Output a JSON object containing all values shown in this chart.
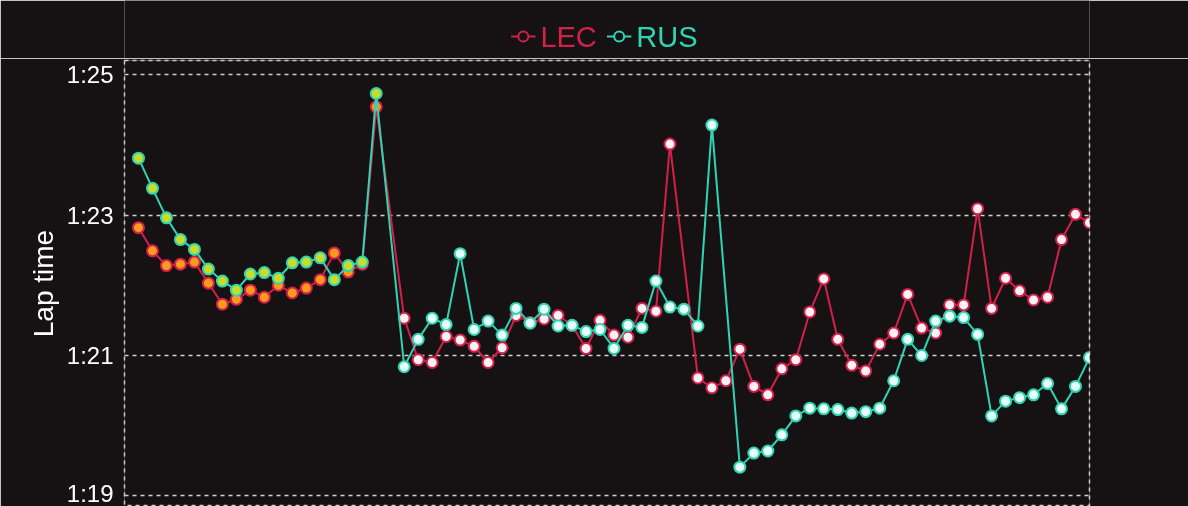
{
  "chart_data": {
    "type": "line",
    "ylabel": "Lap time",
    "categories": [
      null,
      null,
      null,
      null,
      null,
      null,
      null,
      null,
      null,
      null,
      null,
      null,
      null,
      null,
      null,
      null,
      null,
      null,
      null,
      null,
      null,
      null,
      null,
      null,
      null,
      null,
      null,
      null,
      null,
      null,
      null,
      null,
      null,
      null,
      null,
      null,
      null,
      null,
      null,
      null,
      null,
      null,
      null,
      null,
      null,
      null,
      null,
      null,
      null,
      null,
      null,
      null,
      null,
      null,
      null,
      null,
      null,
      null,
      null,
      null,
      null,
      null,
      null,
      null,
      null,
      null,
      null,
      null,
      null
    ],
    "series": [
      {
        "name": "LEC",
        "color": "#d2204a",
        "values": [
          82.82,
          82.49,
          82.28,
          82.3,
          82.33,
          82.03,
          81.73,
          81.8,
          81.93,
          81.83,
          82.0,
          81.89,
          81.96,
          82.08,
          82.46,
          82.19,
          82.3,
          84.54,
          null,
          81.53,
          80.94,
          80.9,
          81.27,
          81.22,
          81.13,
          80.9,
          81.11,
          81.57,
          81.47,
          81.52,
          81.57,
          81.43,
          81.1,
          81.5,
          81.29,
          81.26,
          81.67,
          81.63,
          84.01,
          null,
          80.68,
          80.54,
          80.64,
          81.09,
          80.56,
          80.44,
          80.81,
          80.94,
          81.62,
          82.09,
          81.23,
          80.86,
          80.78,
          81.16,
          81.32,
          81.87,
          81.39,
          81.32,
          81.72,
          81.72,
          83.09,
          81.67,
          82.1,
          81.92,
          81.79,
          81.83,
          82.65,
          83.01,
          82.89
        ],
        "colors": [
          "#ff9a1a",
          "#ff9a1a",
          "#ff9a1a",
          "#ff9a1a",
          "#ff9a1a",
          "#ff9a1a",
          "#ff9a1a",
          "#ff9a1a",
          "#ff9a1a",
          "#ff9a1a",
          "#ff9a1a",
          "#ff9a1a",
          "#ff9a1a",
          "#ff9a1a",
          "#ff9a1a",
          "#ff9a1a",
          "#ff9a1a",
          "#ff9a1a",
          null,
          "#fff0f4",
          "#fff0f4",
          "#fff0f4",
          "#fff0f4",
          "#fff0f4",
          "#fff0f4",
          "#fff0f4",
          "#fff0f4",
          "#fff0f4",
          "#fff0f4",
          "#fff0f4",
          "#fff0f4",
          "#fff0f4",
          "#fff0f4",
          "#fff0f4",
          "#fff0f4",
          "#fff0f4",
          "#fff0f4",
          "#fff0f4",
          "#fff0f4",
          "#fff0f4",
          "#fff0f4",
          "#fff0f4",
          "#fff0f4",
          "#fff0f4",
          "#fff0f4",
          "#fff0f4",
          "#fff0f4",
          "#fff0f4",
          "#fff0f4",
          "#fff0f4",
          "#fff0f4",
          "#fff0f4",
          "#fff0f4",
          "#fff0f4",
          "#fff0f4",
          "#fff0f4",
          "#fff0f4",
          "#fff0f4",
          "#fff0f4",
          "#fff0f4",
          "#fff0f4",
          "#fff0f4",
          "#fff0f4",
          "#fff0f4",
          "#fff0f4",
          "#fff0f4",
          "#fff0f4",
          "#fff0f4",
          "#fff0f4"
        ]
      },
      {
        "name": "RUS",
        "color": "#2fd4b2",
        "values": [
          83.81,
          83.38,
          82.96,
          82.65,
          82.51,
          82.23,
          82.06,
          81.93,
          82.16,
          82.18,
          82.1,
          82.32,
          82.33,
          82.39,
          82.08,
          82.28,
          82.33,
          84.73,
          null,
          80.84,
          81.23,
          81.53,
          81.44,
          82.45,
          81.37,
          81.49,
          81.29,
          81.67,
          81.46,
          81.66,
          81.42,
          81.43,
          81.34,
          81.37,
          81.1,
          81.43,
          81.4,
          82.06,
          81.69,
          81.66,
          81.42,
          84.28,
          null,
          79.41,
          79.61,
          79.64,
          79.87,
          80.14,
          80.25,
          80.24,
          80.23,
          80.18,
          80.2,
          80.25,
          80.64,
          81.23,
          81.0,
          81.49,
          81.56,
          81.54,
          81.3,
          80.14,
          80.35,
          80.4,
          80.44,
          80.6,
          80.24,
          80.56,
          80.97
        ],
        "colors": [
          "#c8dc2a",
          "#c8dc2a",
          "#c8dc2a",
          "#c8dc2a",
          "#c8dc2a",
          "#c8dc2a",
          "#c8dc2a",
          "#c8dc2a",
          "#c8dc2a",
          "#c8dc2a",
          "#c8dc2a",
          "#c8dc2a",
          "#c8dc2a",
          "#c8dc2a",
          "#c8dc2a",
          "#c8dc2a",
          "#c8dc2a",
          "#c8dc2a",
          null,
          "#e6fff8",
          "#e6fff8",
          "#e6fff8",
          "#e6fff8",
          "#e6fff8",
          "#e6fff8",
          "#e6fff8",
          "#e6fff8",
          "#e6fff8",
          "#e6fff8",
          "#e6fff8",
          "#e6fff8",
          "#e6fff8",
          "#e6fff8",
          "#e6fff8",
          "#e6fff8",
          "#e6fff8",
          "#e6fff8",
          "#e6fff8",
          "#e6fff8",
          "#e6fff8",
          "#e6fff8",
          "#e6fff8",
          "#e6fff8",
          "#e6fff8",
          "#e6fff8",
          "#e6fff8",
          "#e6fff8",
          "#e6fff8",
          "#e6fff8",
          "#e6fff8",
          "#e6fff8",
          "#e6fff8",
          "#e6fff8",
          "#e6fff8",
          "#e6fff8",
          "#e6fff8",
          "#e6fff8",
          "#e6fff8",
          "#e6fff8",
          "#e6fff8",
          "#e6fff8",
          "#e6fff8",
          "#e6fff8",
          "#e6fff8",
          "#e6fff8",
          "#e6fff8",
          "#e6fff8",
          "#e6fff8",
          "#e6fff8"
        ]
      }
    ],
    "ylim": [
      78.85,
      85.2
    ],
    "yticks": [
      {
        "value": 79,
        "label": "1:19"
      },
      {
        "value": 81,
        "label": "1:21"
      },
      {
        "value": 83,
        "label": "1:23"
      },
      {
        "value": 85,
        "label": "1:25"
      }
    ],
    "tick_labels": "y",
    "grid": "y",
    "legend": "top",
    "marker": "circle",
    "line_style": "solid"
  }
}
